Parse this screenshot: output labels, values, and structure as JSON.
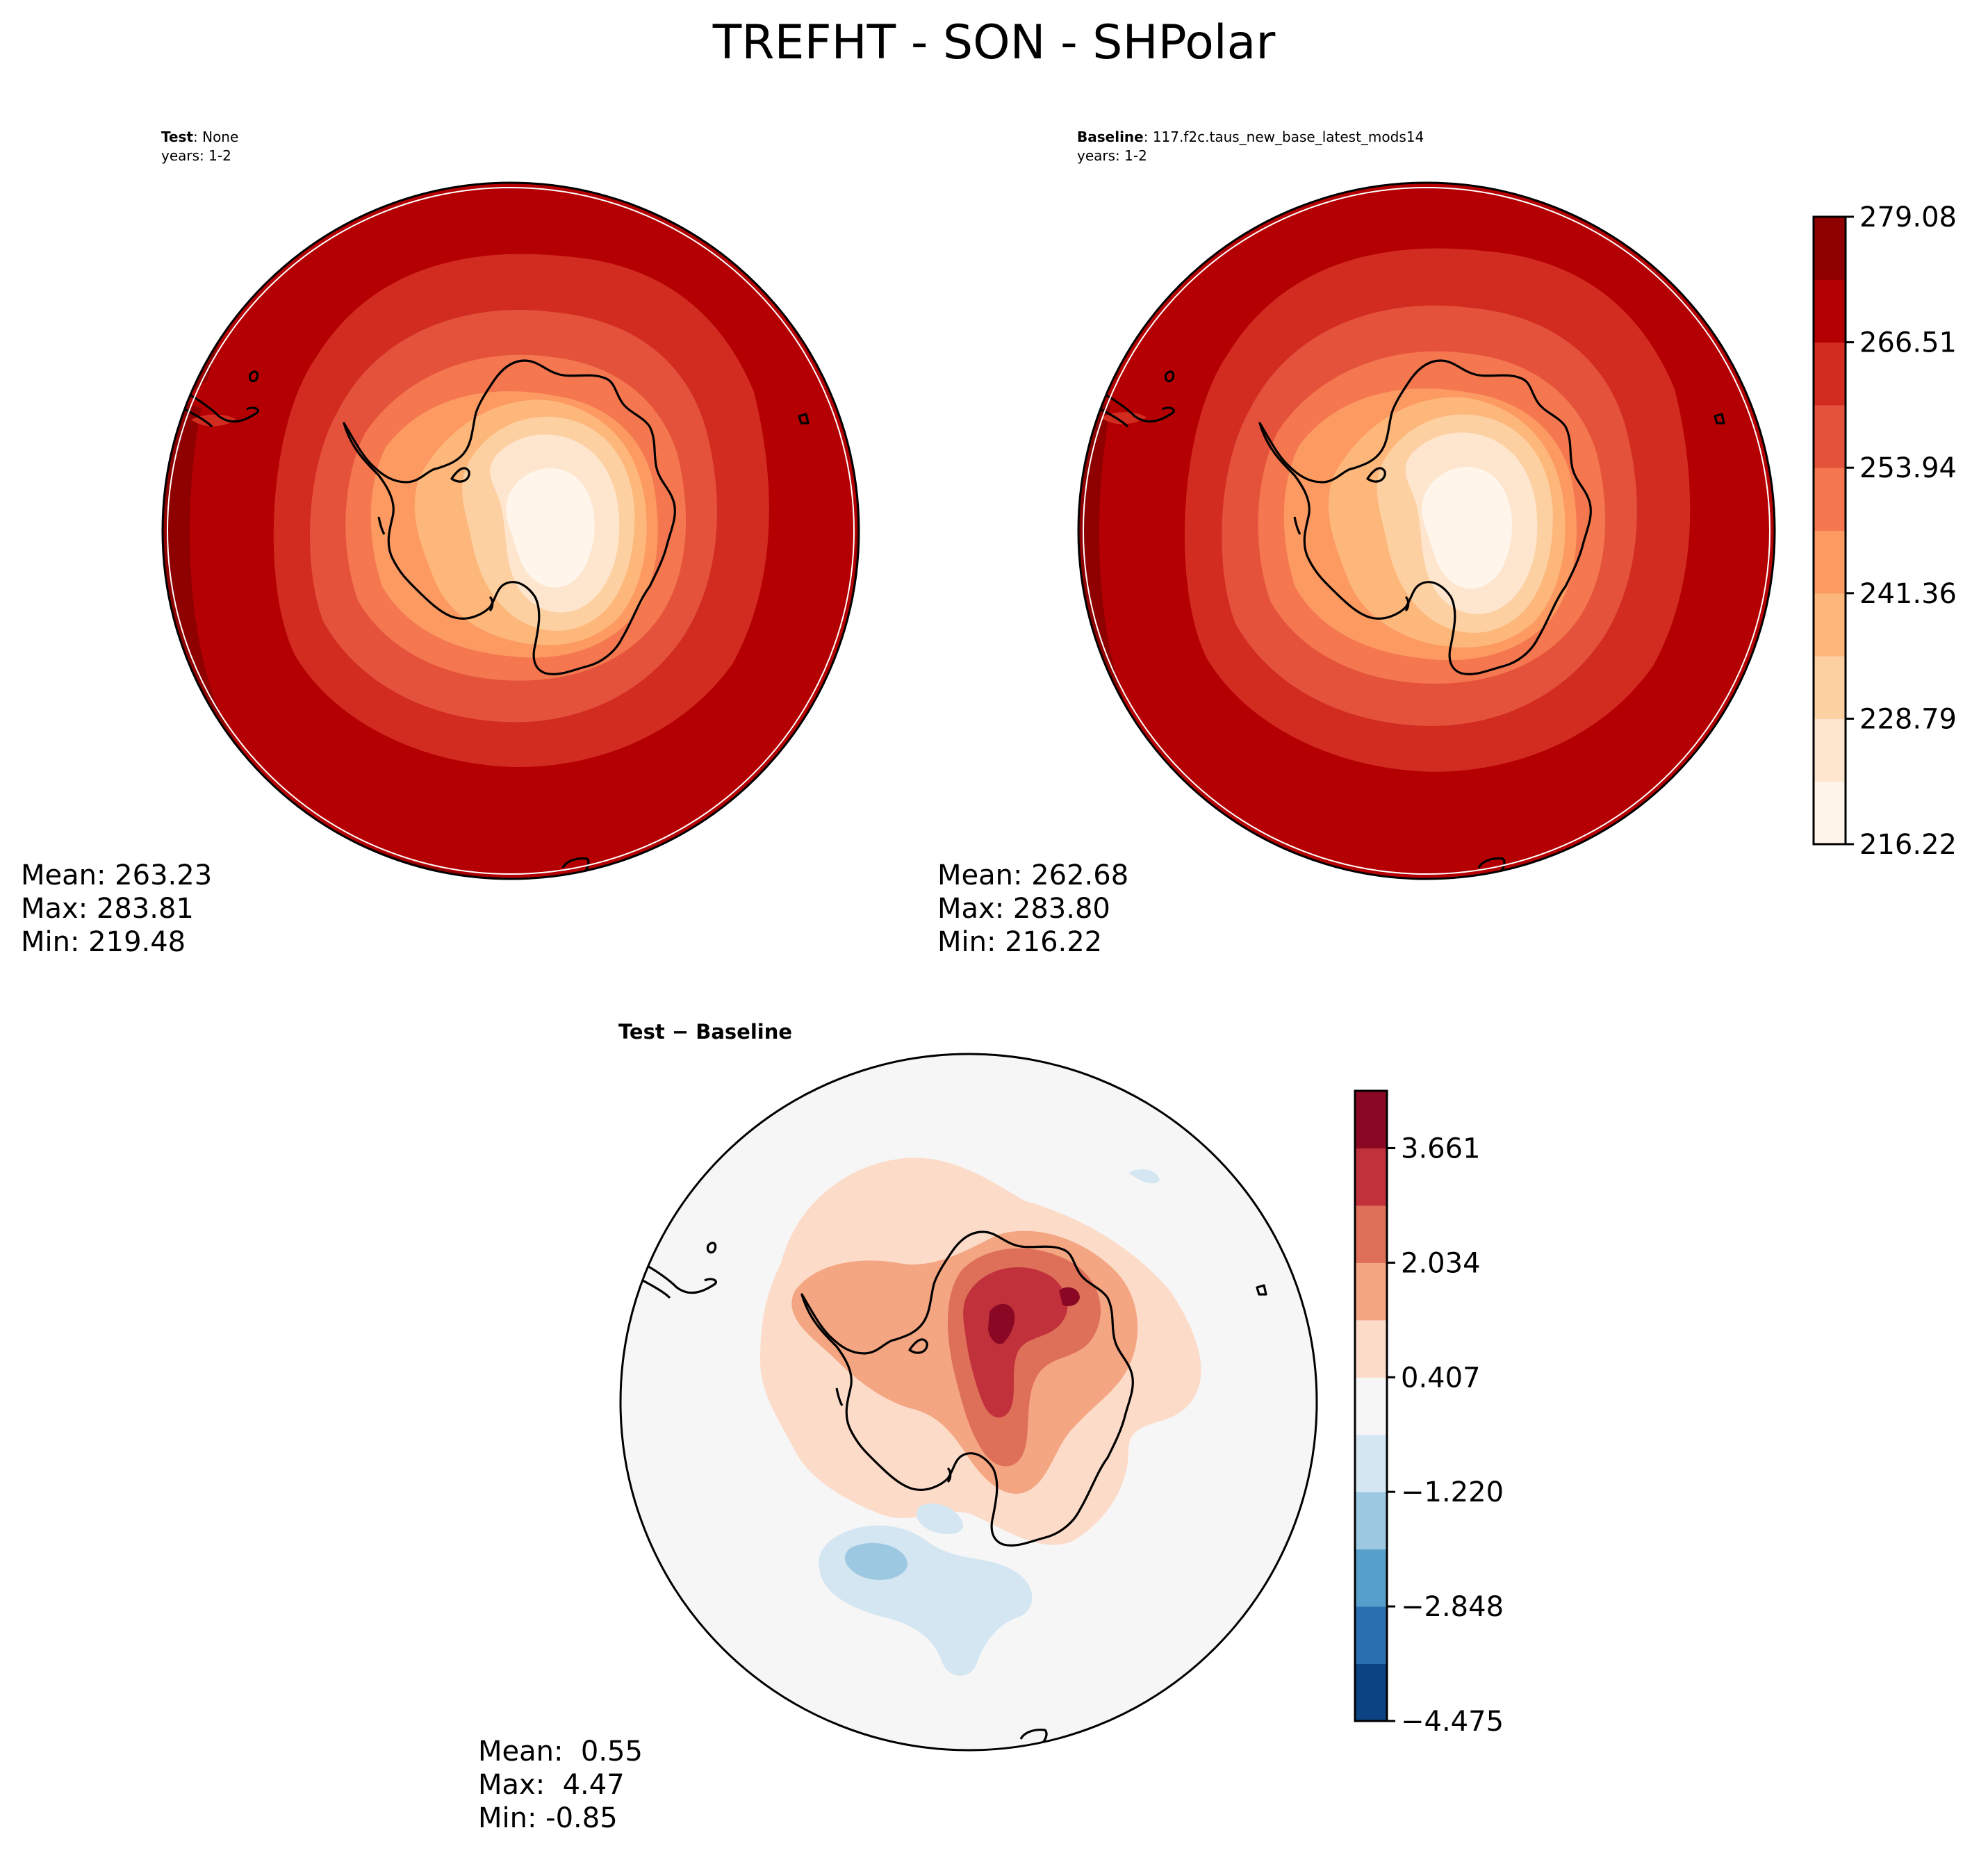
{
  "title": "TREFHT - SON - SHPolar",
  "panels": {
    "test": {
      "label_bold": "Test",
      "label_rest": ": None",
      "years": "years: 1-2",
      "stats": {
        "mean": "Mean: 263.23",
        "max": "Max: 283.81",
        "min": "Min: 219.48"
      }
    },
    "baseline": {
      "label_bold": "Baseline",
      "label_rest": ": 117.f2c.taus_new_base_latest_mods14",
      "years": "years: 1-2",
      "stats": {
        "mean": "Mean: 262.68",
        "max": "Max: 283.80",
        "min": "Min: 216.22"
      }
    },
    "diff": {
      "title": "Test − Baseline",
      "stats": {
        "mean": "Mean:  0.55",
        "max": "Max:  4.47",
        "min": "Min: -0.85"
      }
    }
  },
  "colorbars": {
    "main": {
      "ticks": [
        "216.22",
        "228.79",
        "241.36",
        "253.94",
        "266.51",
        "279.08"
      ],
      "colors": [
        "#fff5eb",
        "#fee6ce",
        "#fdd0a2",
        "#fdb77a",
        "#fc9a62",
        "#f4774f",
        "#e4523b",
        "#d22b20",
        "#b40003",
        "#8f0000"
      ]
    },
    "diff": {
      "ticks": [
        "−4.475",
        "−2.848",
        "−1.220",
        "0.407",
        "2.034",
        "3.661"
      ],
      "colors": [
        "#0c4483",
        "#2a70b0",
        "#569fca",
        "#9cc8e2",
        "#d3e6f2",
        "#f6f6f6",
        "#fcdbc9",
        "#f4a581",
        "#de6f58",
        "#c1313b",
        "#8b0824"
      ]
    }
  }
}
